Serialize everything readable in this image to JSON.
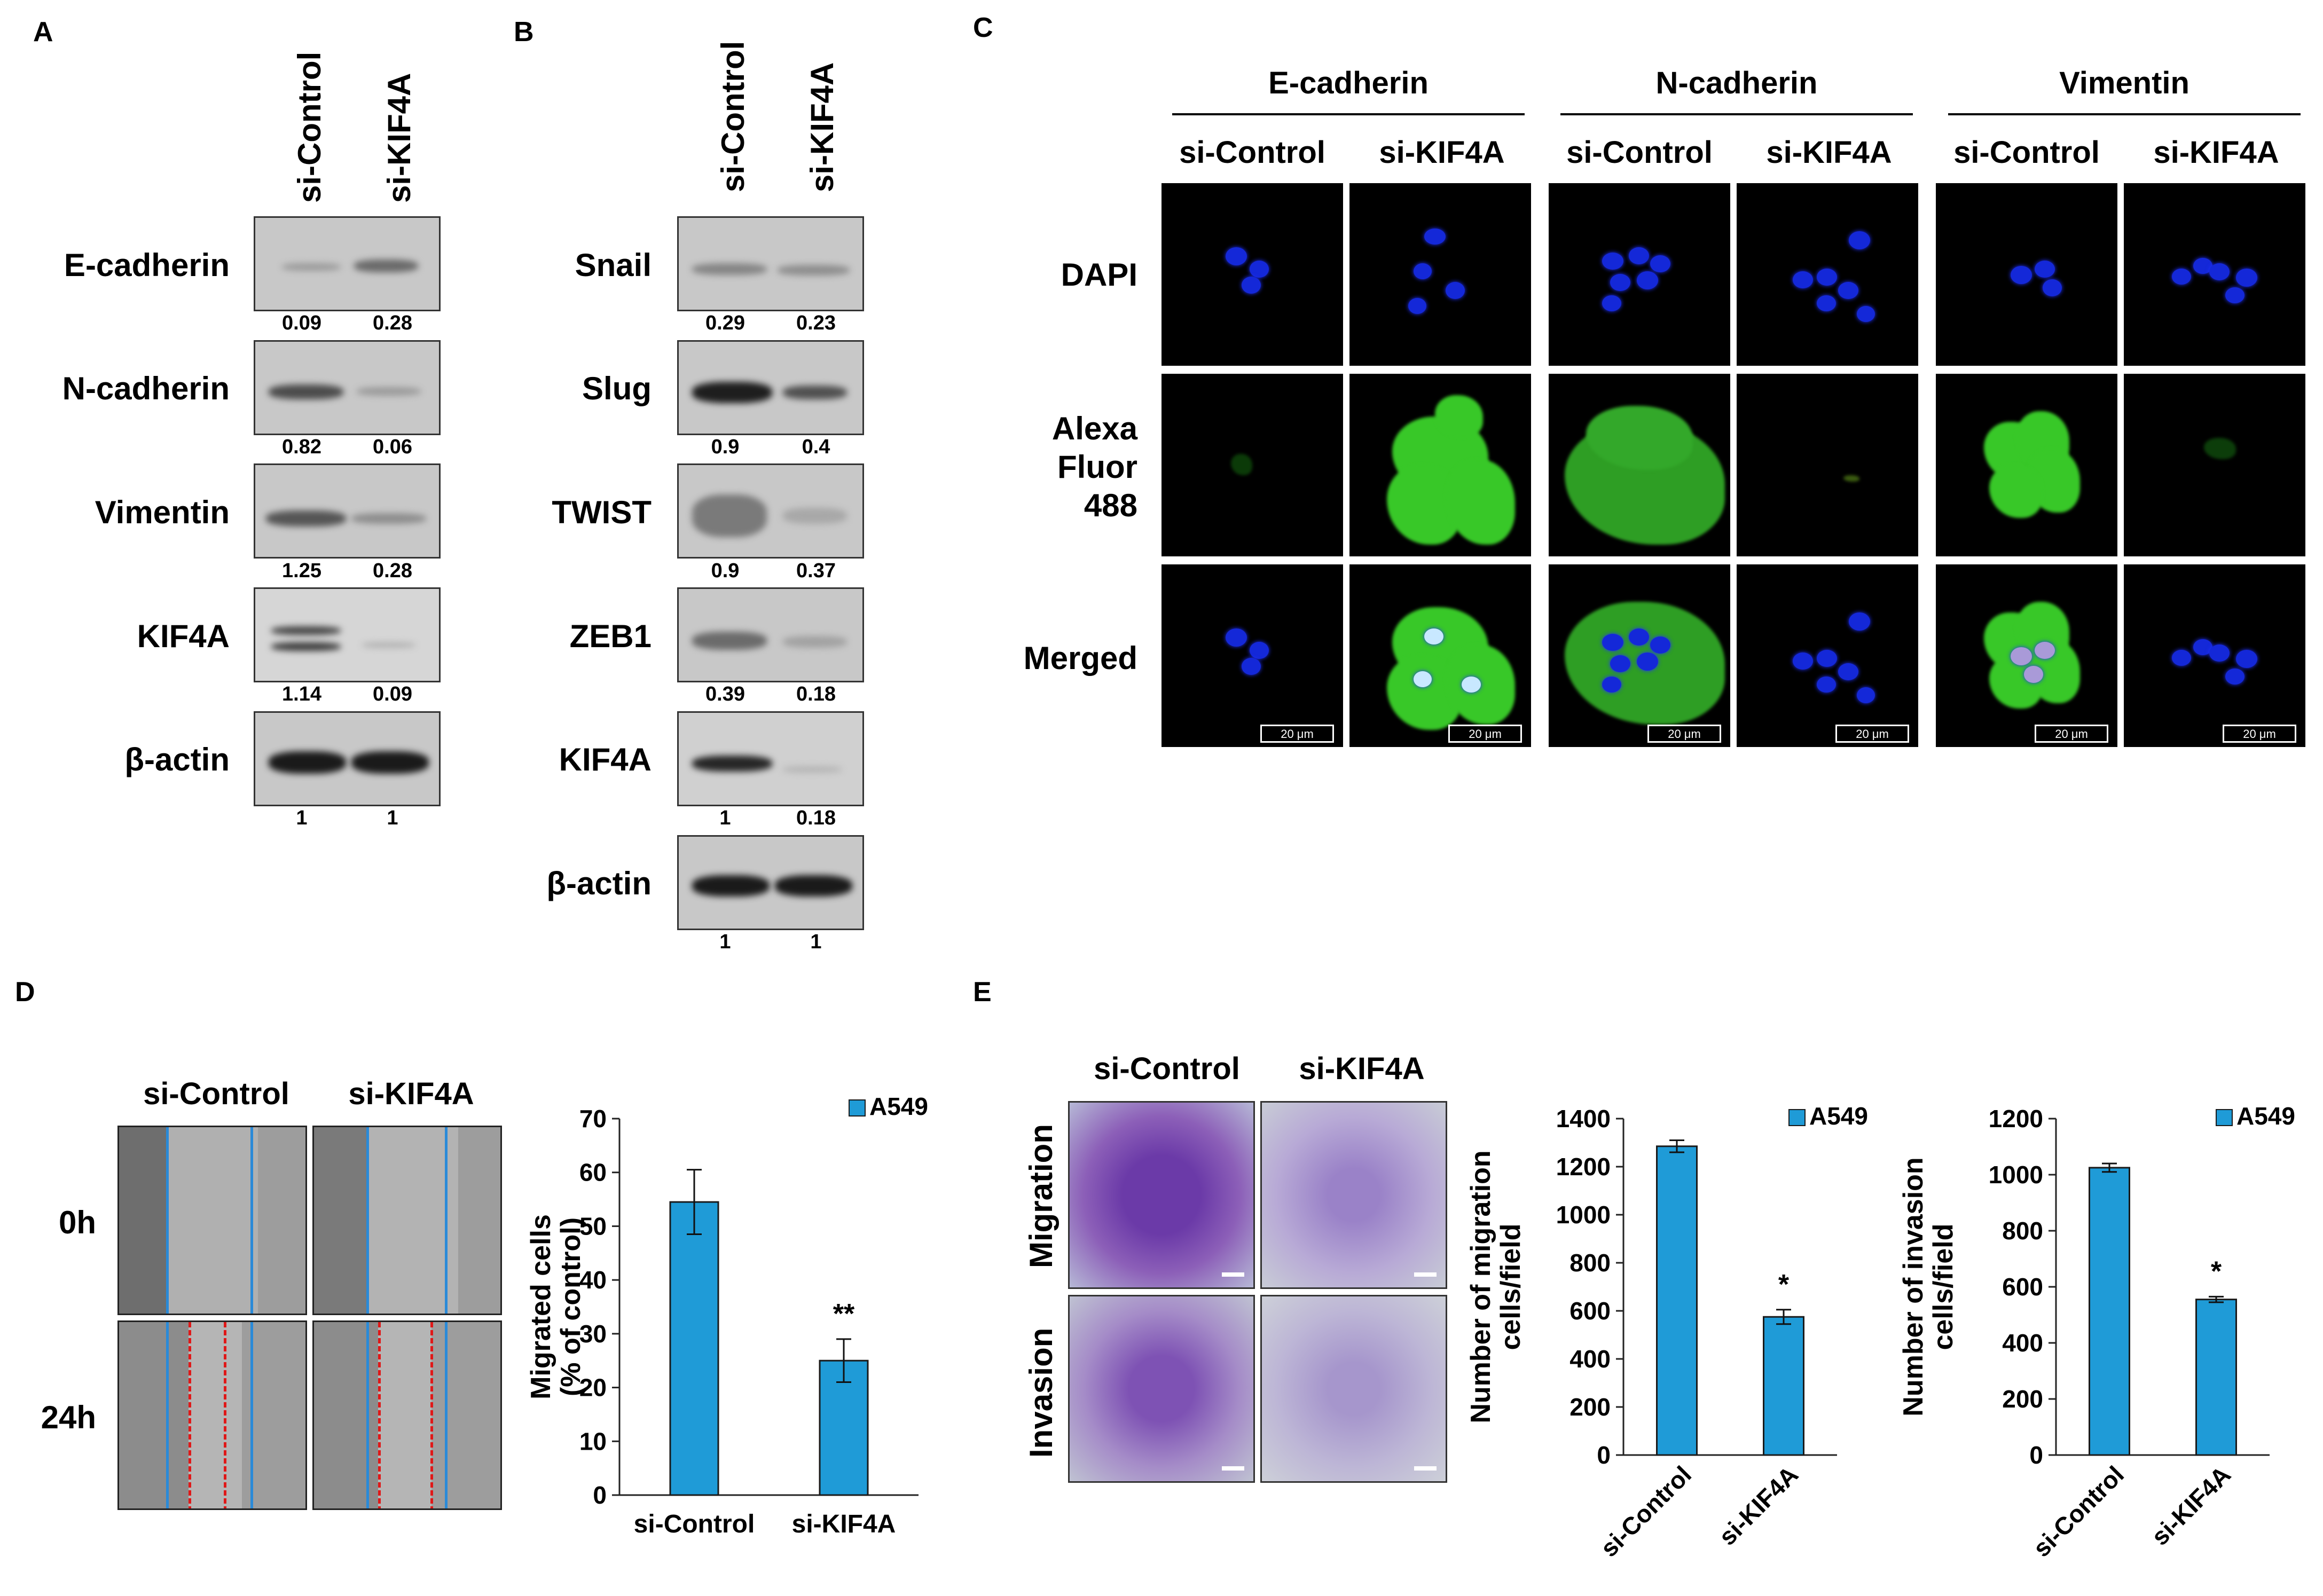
{
  "panel_labels": {
    "a": "A",
    "b": "B",
    "c": "C",
    "d": "D",
    "e": "E"
  },
  "panelA": {
    "columns": [
      "si-Control",
      "si-KIF4A"
    ],
    "rows": [
      {
        "label": "E-cadherin",
        "values": [
          "0.09",
          "0.28"
        ]
      },
      {
        "label": "N-cadherin",
        "values": [
          "0.82",
          "0.06"
        ]
      },
      {
        "label": "Vimentin",
        "values": [
          "1.25",
          "0.28"
        ]
      },
      {
        "label": "KIF4A",
        "values": [
          "1.14",
          "0.09"
        ]
      },
      {
        "label": "β-actin",
        "values": [
          "1",
          "1"
        ]
      }
    ]
  },
  "panelB": {
    "columns": [
      "si-Control",
      "si-KIF4A"
    ],
    "rows": [
      {
        "label": "Snail",
        "values": [
          "0.29",
          "0.23"
        ]
      },
      {
        "label": "Slug",
        "values": [
          "0.9",
          "0.4"
        ]
      },
      {
        "label": "TWIST",
        "values": [
          "0.9",
          "0.37"
        ]
      },
      {
        "label": "ZEB1",
        "values": [
          "0.39",
          "0.18"
        ]
      },
      {
        "label": "KIF4A",
        "values": [
          "1",
          "0.18"
        ]
      },
      {
        "label": "β-actin",
        "values": [
          "1",
          "1"
        ]
      }
    ]
  },
  "panelC": {
    "groups": [
      "E-cadherin",
      "N-cadherin",
      "Vimentin"
    ],
    "columns": [
      "si-Control",
      "si-KIF4A",
      "si-Control",
      "si-KIF4A",
      "si-Control",
      "si-KIF4A"
    ],
    "rows": [
      "DAPI",
      "Alexa",
      "Fluor",
      "488",
      "Merged"
    ],
    "scale_label": "20 μm"
  },
  "panelD": {
    "columns": [
      "si-Control",
      "si-KIF4A"
    ],
    "rows": [
      "0h",
      "24h"
    ],
    "significance": "**"
  },
  "panelE": {
    "columns": [
      "si-Control",
      "si-KIF4A"
    ],
    "rows": [
      "Migration",
      "Invasion"
    ],
    "significance": "*"
  },
  "chart_data": [
    {
      "type": "bar",
      "categories": [
        "si-Control",
        "si-KIF4A"
      ],
      "series": [
        {
          "name": "A549",
          "values": [
            54.5,
            25
          ],
          "errors": [
            6,
            4
          ]
        }
      ],
      "ylabel": "Migrated cells (% of control)",
      "ylabel_lines": [
        "Migrated cells",
        "(% of control)"
      ],
      "ylim": [
        0,
        70
      ],
      "yticks": [
        "0",
        "10",
        "20",
        "30",
        "40",
        "50",
        "60",
        "70"
      ],
      "color": "#1f9bd7",
      "legend_position": "top-right"
    },
    {
      "type": "bar",
      "categories": [
        "si-Control",
        "si-KIF4A"
      ],
      "series": [
        {
          "name": "A549",
          "values": [
            1285,
            575
          ],
          "errors": [
            25,
            30
          ]
        }
      ],
      "ylabel": "Number of migration cells/field",
      "ylabel_lines": [
        "Number of migration",
        "cells/field"
      ],
      "ylim": [
        0,
        1400
      ],
      "yticks": [
        "0",
        "200",
        "400",
        "600",
        "800",
        "1000",
        "1200",
        "1400"
      ],
      "color": "#1f9bd7",
      "legend_position": "top-right"
    },
    {
      "type": "bar",
      "categories": [
        "si-Control",
        "si-KIF4A"
      ],
      "series": [
        {
          "name": "A549",
          "values": [
            1025,
            555
          ],
          "errors": [
            15,
            10
          ]
        }
      ],
      "ylabel": "Number of invasion cells/field",
      "ylabel_lines": [
        "Number of invasion",
        "cells/field"
      ],
      "ylim": [
        0,
        1200
      ],
      "yticks": [
        "0",
        "200",
        "400",
        "600",
        "800",
        "1000",
        "1200"
      ],
      "color": "#1f9bd7",
      "legend_position": "top-right"
    }
  ]
}
